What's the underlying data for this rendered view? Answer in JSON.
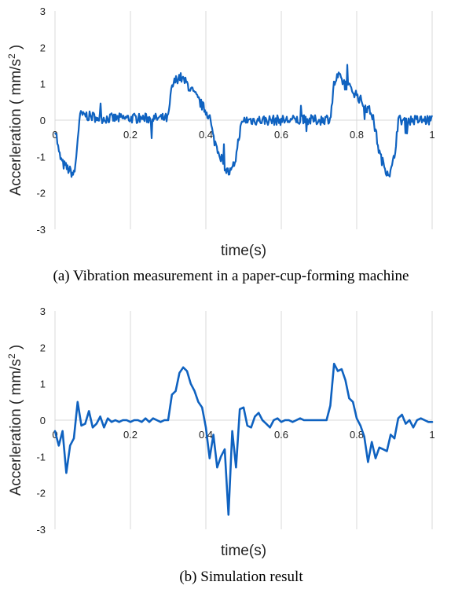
{
  "chart_data": [
    {
      "id": "a",
      "type": "line",
      "caption": "(a) Vibration measurement in a paper-cup-forming machine",
      "xlabel": "time(s)",
      "ylabel": "Accerleration ( mm/s",
      "ylabel_sup": "2",
      "ylabel_end": " )",
      "xlim": [
        0,
        1
      ],
      "ylim": [
        -3,
        3
      ],
      "xticks": [
        "0",
        "0.2",
        "0.4",
        "0.6",
        "0.8",
        "1"
      ],
      "yticks": [
        "3",
        "2",
        "1",
        "0",
        "-1",
        "-2",
        "-3"
      ],
      "grid": true,
      "series": [
        {
          "color": "#0f62c0",
          "noisy": true,
          "x": [
            0,
            0.005,
            0.01,
            0.02,
            0.03,
            0.04,
            0.05,
            0.055,
            0.06,
            0.065,
            0.07,
            0.075,
            0.08,
            0.09,
            0.1,
            0.12,
            0.15,
            0.2,
            0.25,
            0.3,
            0.305,
            0.31,
            0.32,
            0.33,
            0.34,
            0.35,
            0.37,
            0.39,
            0.41,
            0.42,
            0.44,
            0.45,
            0.46,
            0.47,
            0.48,
            0.49,
            0.5,
            0.55,
            0.6,
            0.65,
            0.7,
            0.73,
            0.735,
            0.74,
            0.75,
            0.76,
            0.78,
            0.8,
            0.82,
            0.84,
            0.85,
            0.86,
            0.87,
            0.88,
            0.89,
            0.9,
            0.91,
            0.95,
            1
          ],
          "y": [
            -0.2,
            -0.5,
            -0.9,
            -1.2,
            -1.3,
            -1.4,
            -1.5,
            -1.2,
            -0.5,
            0.0,
            0.2,
            0.1,
            0.15,
            0.1,
            0.1,
            0.05,
            0.05,
            0.05,
            0.05,
            0.05,
            0.5,
            0.9,
            1.1,
            1.2,
            1.1,
            1.0,
            0.7,
            0.4,
            0.1,
            -0.5,
            -1.0,
            -1.3,
            -1.45,
            -1.4,
            -1.0,
            -0.3,
            0.0,
            0.0,
            0.0,
            0.0,
            0.0,
            0.05,
            0.5,
            1.0,
            1.2,
            1.1,
            0.9,
            0.7,
            0.4,
            0.2,
            -0.3,
            -0.9,
            -1.2,
            -1.4,
            -1.45,
            -1.0,
            0.0,
            0.0,
            0.0
          ]
        }
      ]
    },
    {
      "id": "b",
      "type": "line",
      "caption": "(b) Simulation result",
      "xlabel": "time(s)",
      "ylabel": "Accerleration ( mm/s",
      "ylabel_sup": "2",
      "ylabel_end": " )",
      "xlim": [
        0,
        1
      ],
      "ylim": [
        -3,
        3
      ],
      "xticks": [
        "0",
        "0.2",
        "0.4",
        "0.6",
        "0.8",
        "1"
      ],
      "yticks": [
        "3",
        "2",
        "1",
        "0",
        "-1",
        "-2",
        "-3"
      ],
      "grid": true,
      "series": [
        {
          "color": "#0f62c0",
          "noisy": false,
          "x": [
            0,
            0.01,
            0.02,
            0.03,
            0.04,
            0.05,
            0.06,
            0.07,
            0.08,
            0.09,
            0.1,
            0.11,
            0.12,
            0.13,
            0.14,
            0.15,
            0.16,
            0.17,
            0.18,
            0.19,
            0.2,
            0.21,
            0.22,
            0.23,
            0.24,
            0.25,
            0.26,
            0.27,
            0.28,
            0.29,
            0.3,
            0.31,
            0.32,
            0.33,
            0.34,
            0.35,
            0.36,
            0.37,
            0.38,
            0.39,
            0.4,
            0.41,
            0.42,
            0.43,
            0.44,
            0.45,
            0.46,
            0.47,
            0.48,
            0.49,
            0.5,
            0.51,
            0.52,
            0.53,
            0.54,
            0.55,
            0.56,
            0.57,
            0.58,
            0.59,
            0.6,
            0.61,
            0.62,
            0.63,
            0.64,
            0.65,
            0.66,
            0.67,
            0.68,
            0.69,
            0.7,
            0.71,
            0.72,
            0.73,
            0.74,
            0.75,
            0.76,
            0.77,
            0.78,
            0.79,
            0.8,
            0.81,
            0.82,
            0.83,
            0.84,
            0.85,
            0.86,
            0.87,
            0.88,
            0.89,
            0.9,
            0.91,
            0.92,
            0.93,
            0.94,
            0.95,
            0.96,
            0.97,
            0.98,
            0.99,
            1
          ],
          "y": [
            -0.3,
            -0.7,
            -0.3,
            -1.45,
            -0.7,
            -0.5,
            0.5,
            -0.15,
            -0.1,
            0.25,
            -0.2,
            -0.1,
            0.1,
            -0.2,
            0.05,
            -0.05,
            0.0,
            -0.05,
            0.0,
            0.0,
            -0.05,
            0.0,
            0.0,
            -0.05,
            0.05,
            -0.05,
            0.05,
            0.0,
            -0.05,
            0.0,
            0.0,
            0.7,
            0.8,
            1.3,
            1.45,
            1.35,
            1.0,
            0.8,
            0.5,
            0.35,
            -0.2,
            -1.05,
            -0.4,
            -1.3,
            -1.0,
            -0.8,
            -2.6,
            -0.3,
            -1.3,
            0.3,
            0.35,
            -0.15,
            -0.2,
            0.1,
            0.2,
            0.0,
            -0.1,
            -0.2,
            0.0,
            0.05,
            -0.05,
            0.0,
            0.0,
            -0.05,
            0.0,
            0.05,
            0.0,
            0.0,
            0.0,
            0.0,
            0.0,
            0.0,
            0.0,
            0.4,
            1.55,
            1.35,
            1.4,
            1.1,
            0.6,
            0.5,
            0.05,
            -0.15,
            -0.45,
            -1.15,
            -0.6,
            -1.05,
            -0.75,
            -0.8,
            -0.85,
            -0.4,
            -0.5,
            0.05,
            0.15,
            -0.1,
            0.0,
            -0.2,
            0.0,
            0.05,
            0.0,
            -0.05,
            -0.05
          ]
        }
      ]
    }
  ]
}
